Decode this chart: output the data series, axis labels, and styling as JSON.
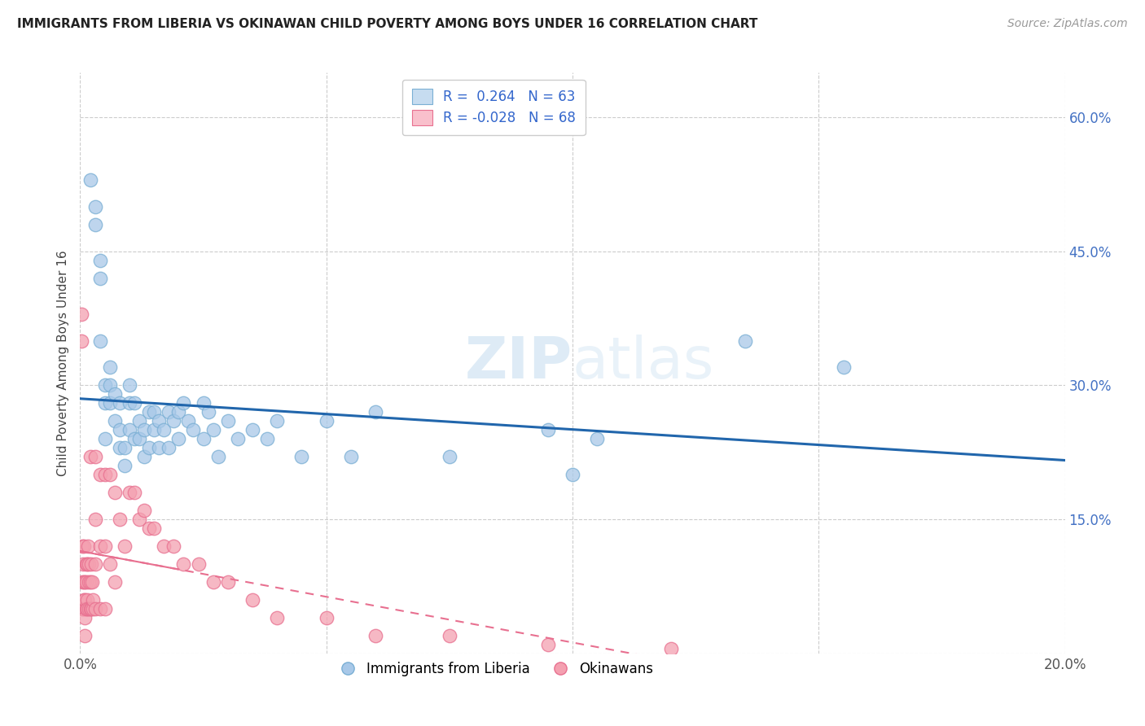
{
  "title": "IMMIGRANTS FROM LIBERIA VS OKINAWAN CHILD POVERTY AMONG BOYS UNDER 16 CORRELATION CHART",
  "source": "Source: ZipAtlas.com",
  "ylabel": "Child Poverty Among Boys Under 16",
  "xlim": [
    0,
    0.2
  ],
  "ylim": [
    0,
    0.65
  ],
  "blue_R": 0.264,
  "blue_N": 63,
  "pink_R": -0.028,
  "pink_N": 68,
  "legend_label_blue": "Immigrants from Liberia",
  "legend_label_pink": "Okinawans",
  "blue_color": "#a8c8e8",
  "blue_edge_color": "#7aafd4",
  "pink_color": "#f4a0b0",
  "pink_edge_color": "#e87090",
  "blue_line_color": "#2166ac",
  "pink_line_color": "#e87090",
  "watermark": "ZIPatlas",
  "blue_points_x": [
    0.002,
    0.003,
    0.003,
    0.004,
    0.004,
    0.004,
    0.005,
    0.005,
    0.005,
    0.006,
    0.006,
    0.006,
    0.007,
    0.007,
    0.008,
    0.008,
    0.008,
    0.009,
    0.009,
    0.01,
    0.01,
    0.01,
    0.011,
    0.011,
    0.012,
    0.012,
    0.013,
    0.013,
    0.014,
    0.014,
    0.015,
    0.015,
    0.016,
    0.016,
    0.017,
    0.018,
    0.018,
    0.019,
    0.02,
    0.02,
    0.021,
    0.022,
    0.023,
    0.025,
    0.025,
    0.026,
    0.027,
    0.028,
    0.03,
    0.032,
    0.035,
    0.038,
    0.04,
    0.045,
    0.05,
    0.055,
    0.06,
    0.075,
    0.095,
    0.1,
    0.105,
    0.135,
    0.155
  ],
  "blue_points_y": [
    0.53,
    0.5,
    0.48,
    0.44,
    0.42,
    0.35,
    0.3,
    0.28,
    0.24,
    0.32,
    0.3,
    0.28,
    0.29,
    0.26,
    0.28,
    0.25,
    0.23,
    0.23,
    0.21,
    0.3,
    0.28,
    0.25,
    0.28,
    0.24,
    0.26,
    0.24,
    0.25,
    0.22,
    0.27,
    0.23,
    0.27,
    0.25,
    0.26,
    0.23,
    0.25,
    0.27,
    0.23,
    0.26,
    0.27,
    0.24,
    0.28,
    0.26,
    0.25,
    0.28,
    0.24,
    0.27,
    0.25,
    0.22,
    0.26,
    0.24,
    0.25,
    0.24,
    0.26,
    0.22,
    0.26,
    0.22,
    0.27,
    0.22,
    0.25,
    0.2,
    0.24,
    0.35,
    0.32
  ],
  "pink_points_x": [
    0.0002,
    0.0003,
    0.0004,
    0.0004,
    0.0005,
    0.0006,
    0.0006,
    0.0007,
    0.0008,
    0.0008,
    0.0009,
    0.001,
    0.001,
    0.001,
    0.001,
    0.0012,
    0.0012,
    0.0013,
    0.0014,
    0.0015,
    0.0015,
    0.0016,
    0.0017,
    0.0018,
    0.0018,
    0.002,
    0.002,
    0.0021,
    0.0022,
    0.0023,
    0.0024,
    0.0025,
    0.0026,
    0.003,
    0.003,
    0.003,
    0.003,
    0.004,
    0.004,
    0.004,
    0.005,
    0.005,
    0.005,
    0.006,
    0.006,
    0.007,
    0.007,
    0.008,
    0.009,
    0.01,
    0.011,
    0.012,
    0.013,
    0.014,
    0.015,
    0.017,
    0.019,
    0.021,
    0.024,
    0.027,
    0.03,
    0.035,
    0.04,
    0.05,
    0.06,
    0.075,
    0.095,
    0.12
  ],
  "pink_points_y": [
    0.38,
    0.35,
    0.08,
    0.05,
    0.12,
    0.1,
    0.05,
    0.08,
    0.12,
    0.06,
    0.05,
    0.08,
    0.06,
    0.04,
    0.02,
    0.1,
    0.05,
    0.08,
    0.06,
    0.1,
    0.05,
    0.12,
    0.08,
    0.1,
    0.05,
    0.22,
    0.05,
    0.08,
    0.1,
    0.05,
    0.08,
    0.05,
    0.06,
    0.22,
    0.15,
    0.1,
    0.05,
    0.2,
    0.12,
    0.05,
    0.2,
    0.12,
    0.05,
    0.2,
    0.1,
    0.18,
    0.08,
    0.15,
    0.12,
    0.18,
    0.18,
    0.15,
    0.16,
    0.14,
    0.14,
    0.12,
    0.12,
    0.1,
    0.1,
    0.08,
    0.08,
    0.06,
    0.04,
    0.04,
    0.02,
    0.02,
    0.01,
    0.005
  ]
}
